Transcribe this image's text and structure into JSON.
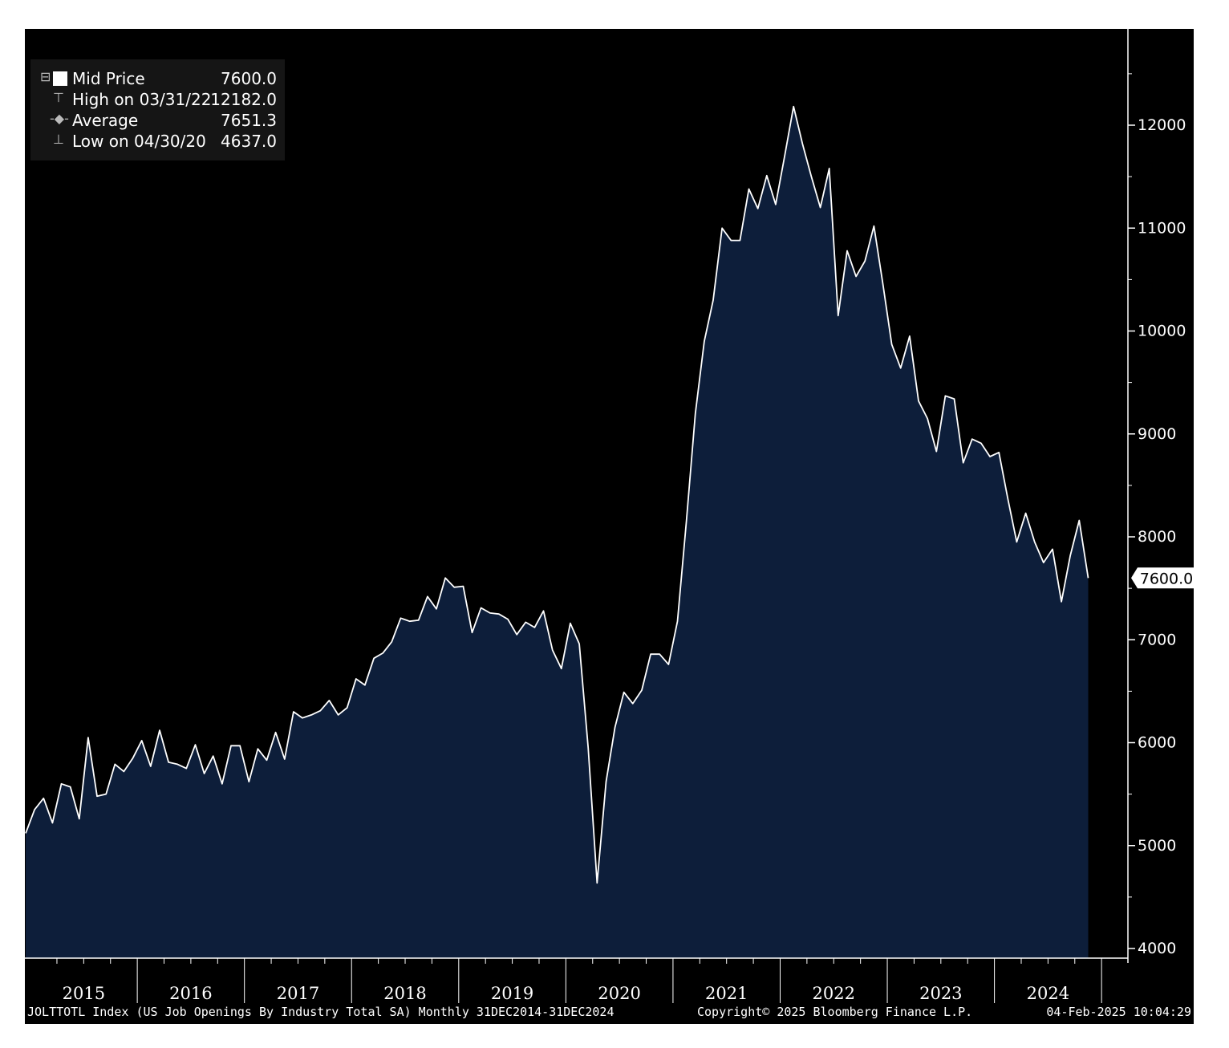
{
  "legend": {
    "rows": [
      {
        "label": "Mid Price",
        "value": "7600.0"
      },
      {
        "label": "High on 03/31/22",
        "value": "12182.0"
      },
      {
        "label": "Average",
        "value": "7651.3"
      },
      {
        "label": "Low on 04/30/20",
        "value": "4637.0"
      }
    ]
  },
  "last_value_label": "7600.0",
  "footer": {
    "left": "JOLTTOTL Index (US Job Openings By Industry Total SA)  Monthly 31DEC2014-31DEC2024",
    "middle": "Copyright© 2025 Bloomberg Finance L.P.",
    "right": "04-Feb-2025 10:04:29"
  },
  "colors": {
    "background": "#000000",
    "area_fill": "#0d1e3a",
    "line": "#ffffff",
    "text": "#ffffff"
  },
  "chart_data": {
    "type": "area",
    "title": "",
    "xlabel": "",
    "ylabel": "",
    "ylim": [
      4000,
      12500
    ],
    "yticks": [
      4000,
      5000,
      6000,
      7000,
      8000,
      9000,
      10000,
      11000,
      12000
    ],
    "x_tick_labels": [
      "2015",
      "2016",
      "2017",
      "2018",
      "2019",
      "2020",
      "2021",
      "2022",
      "2023",
      "2024"
    ],
    "x_start": "2014-12",
    "x_end": "2024-12",
    "grid": false,
    "legend_position": "top-left",
    "series": [
      {
        "name": "Mid Price",
        "frequency": "monthly",
        "values": [
          5120,
          5350,
          5460,
          5220,
          5600,
          5570,
          5260,
          6050,
          5480,
          5500,
          5790,
          5720,
          5850,
          6020,
          5770,
          6120,
          5810,
          5790,
          5750,
          5980,
          5700,
          5870,
          5600,
          5970,
          5970,
          5620,
          5940,
          5830,
          6100,
          5840,
          6300,
          6240,
          6270,
          6310,
          6410,
          6270,
          6340,
          6620,
          6560,
          6820,
          6870,
          6980,
          7210,
          7180,
          7190,
          7420,
          7300,
          7600,
          7510,
          7520,
          7070,
          7310,
          7260,
          7250,
          7200,
          7050,
          7170,
          7120,
          7280,
          6900,
          6720,
          7160,
          6960,
          5950,
          4637,
          5620,
          6150,
          6490,
          6380,
          6510,
          6860,
          6860,
          6760,
          7180,
          8150,
          9200,
          9900,
          10300,
          11000,
          10880,
          10880,
          11380,
          11190,
          11510,
          11230,
          11700,
          12182,
          11820,
          11500,
          11200,
          11580,
          10150,
          10780,
          10530,
          10680,
          11020,
          10460,
          9870,
          9640,
          9950,
          9320,
          9150,
          8830,
          9370,
          9340,
          8720,
          8950,
          8910,
          8780,
          8820,
          8370,
          7950,
          8230,
          7950,
          7750,
          7880,
          7370,
          7820,
          8160,
          7600
        ]
      }
    ]
  }
}
